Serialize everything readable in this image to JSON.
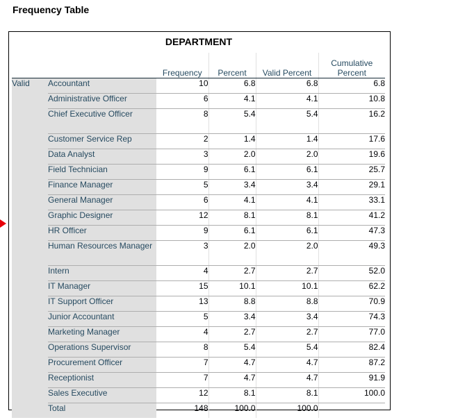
{
  "heading": "Frequency Table",
  "table": {
    "title": "DEPARTMENT",
    "columns": [
      "Frequency",
      "Percent",
      "Valid Percent",
      "Cumulative Percent"
    ],
    "stub_label": "Valid",
    "rows": [
      {
        "label": "Accountant",
        "frequency": "10",
        "percent": "6.8",
        "valid_percent": "6.8",
        "cumulative": "6.8"
      },
      {
        "label": "Administrative Officer",
        "frequency": "6",
        "percent": "4.1",
        "valid_percent": "4.1",
        "cumulative": "10.8"
      },
      {
        "label": "Chief Executive Officer",
        "frequency": "8",
        "percent": "5.4",
        "valid_percent": "5.4",
        "cumulative": "16.2"
      },
      {
        "label": "Customer Service Rep",
        "frequency": "2",
        "percent": "1.4",
        "valid_percent": "1.4",
        "cumulative": "17.6"
      },
      {
        "label": "Data Analyst",
        "frequency": "3",
        "percent": "2.0",
        "valid_percent": "2.0",
        "cumulative": "19.6"
      },
      {
        "label": "Field Technician",
        "frequency": "9",
        "percent": "6.1",
        "valid_percent": "6.1",
        "cumulative": "25.7"
      },
      {
        "label": "Finance Manager",
        "frequency": "5",
        "percent": "3.4",
        "valid_percent": "3.4",
        "cumulative": "29.1"
      },
      {
        "label": "General Manager",
        "frequency": "6",
        "percent": "4.1",
        "valid_percent": "4.1",
        "cumulative": "33.1"
      },
      {
        "label": "Graphic Designer",
        "frequency": "12",
        "percent": "8.1",
        "valid_percent": "8.1",
        "cumulative": "41.2"
      },
      {
        "label": "HR Officer",
        "frequency": "9",
        "percent": "6.1",
        "valid_percent": "6.1",
        "cumulative": "47.3"
      },
      {
        "label": "Human Resources Manager",
        "frequency": "3",
        "percent": "2.0",
        "valid_percent": "2.0",
        "cumulative": "49.3"
      },
      {
        "label": "Intern",
        "frequency": "4",
        "percent": "2.7",
        "valid_percent": "2.7",
        "cumulative": "52.0"
      },
      {
        "label": "IT Manager",
        "frequency": "15",
        "percent": "10.1",
        "valid_percent": "10.1",
        "cumulative": "62.2"
      },
      {
        "label": "IT Support Officer",
        "frequency": "13",
        "percent": "8.8",
        "valid_percent": "8.8",
        "cumulative": "70.9"
      },
      {
        "label": "Junior Accountant",
        "frequency": "5",
        "percent": "3.4",
        "valid_percent": "3.4",
        "cumulative": "74.3"
      },
      {
        "label": "Marketing Manager",
        "frequency": "4",
        "percent": "2.7",
        "valid_percent": "2.7",
        "cumulative": "77.0"
      },
      {
        "label": "Operations Supervisor",
        "frequency": "8",
        "percent": "5.4",
        "valid_percent": "5.4",
        "cumulative": "82.4"
      },
      {
        "label": "Procurement Officer",
        "frequency": "7",
        "percent": "4.7",
        "valid_percent": "4.7",
        "cumulative": "87.2"
      },
      {
        "label": "Receptionist",
        "frequency": "7",
        "percent": "4.7",
        "valid_percent": "4.7",
        "cumulative": "91.9"
      },
      {
        "label": "Sales Executive",
        "frequency": "12",
        "percent": "8.1",
        "valid_percent": "8.1",
        "cumulative": "100.0"
      },
      {
        "label": "Total",
        "frequency": "148",
        "percent": "100.0",
        "valid_percent": "100.0",
        "cumulative": ""
      }
    ]
  },
  "colors": {
    "text": "#264a60",
    "stub_bg": "#e0e0e0",
    "marker": "#e8000a"
  }
}
